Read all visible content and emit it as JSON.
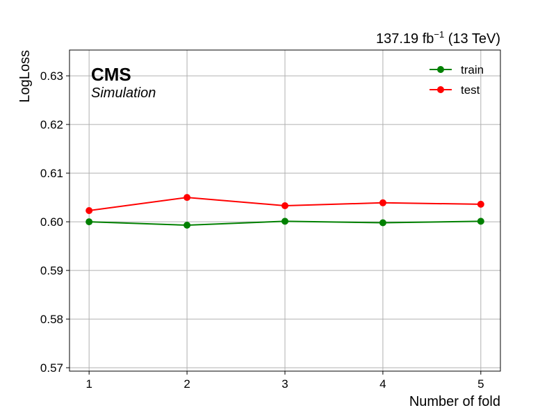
{
  "chart_data": {
    "type": "line",
    "title": "",
    "xlabel": "Number of fold",
    "ylabel": "LogLoss",
    "lumi_label": "137.19 fb",
    "lumi_exponent": "−1",
    "lumi_energy": " (13 TeV)",
    "experiment": "CMS",
    "experiment_sub": "Simulation",
    "x": [
      1,
      2,
      3,
      4,
      5
    ],
    "x_ticks": [
      "1",
      "2",
      "3",
      "4",
      "5"
    ],
    "y_ticks": [
      "0.57",
      "0.58",
      "0.59",
      "0.60",
      "0.61",
      "0.62",
      "0.63"
    ],
    "xlim": [
      0.8,
      5.2
    ],
    "ylim": [
      0.5693,
      0.6353
    ],
    "grid": true,
    "legend_position": "top-right",
    "series": [
      {
        "name": "train",
        "color": "#008000",
        "values": [
          0.6,
          0.5993,
          0.6001,
          0.5998,
          0.6001
        ]
      },
      {
        "name": "test",
        "color": "#ff0000",
        "values": [
          0.6023,
          0.605,
          0.6033,
          0.6039,
          0.6036
        ]
      }
    ]
  }
}
